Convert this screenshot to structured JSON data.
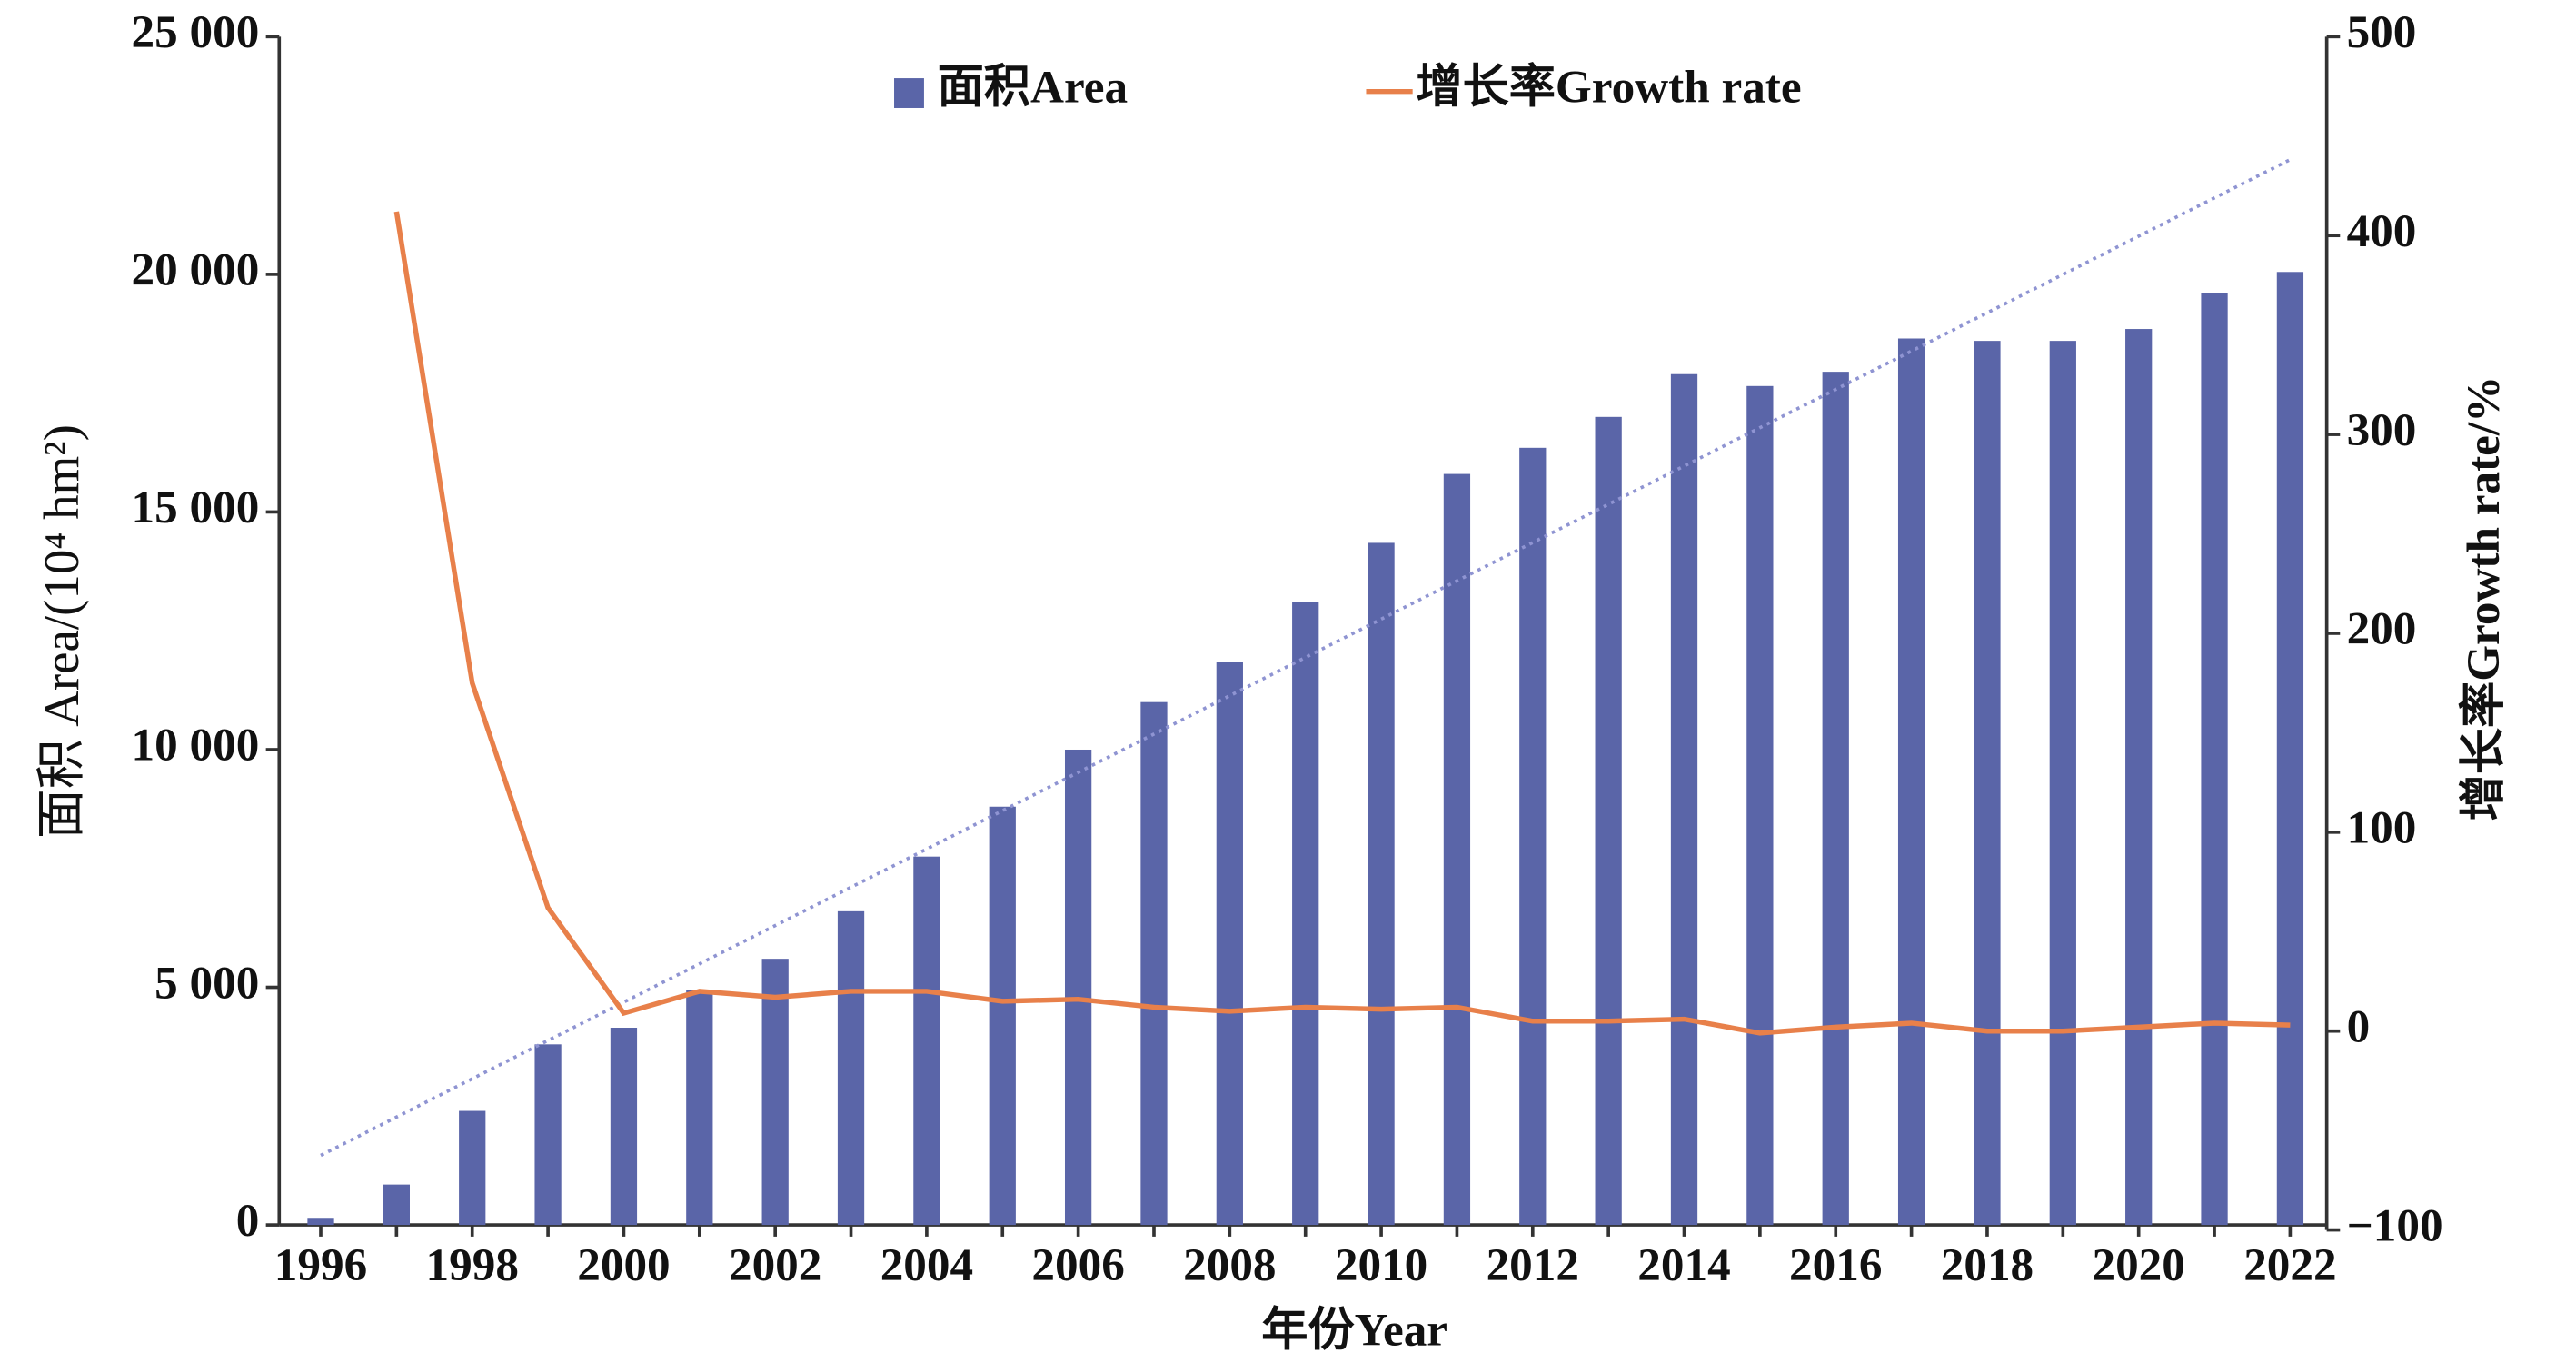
{
  "chart_data": {
    "type": "bar",
    "x_label": "年份Year",
    "y_label": "面积  Area/(10⁴ hm²)",
    "y2_label": "增长率Growth rate/%",
    "categories": [
      "1996",
      null,
      "1998",
      null,
      "2000",
      null,
      "2002",
      null,
      "2004",
      null,
      "2006",
      null,
      "2008",
      null,
      "2010",
      null,
      "2012",
      null,
      "2014",
      null,
      "2016",
      null,
      "2018",
      null,
      "2020",
      null,
      "2022"
    ],
    "series": [
      {
        "name": "面积Area",
        "type": "bar",
        "color": "#5a65a8",
        "trendline": true,
        "trendline_color": "#8f94d2",
        "values": [
          150,
          850,
          2400,
          3800,
          4150,
          4950,
          5600,
          6600,
          7750,
          8800,
          10000,
          11000,
          11850,
          13100,
          14350,
          15800,
          16350,
          17000,
          17900,
          17650,
          17950,
          18650,
          18600,
          18600,
          18850,
          19600,
          20050
        ]
      },
      {
        "name": "增长率Growth rate",
        "type": "line",
        "axis": "y2",
        "color": "#e8804a",
        "values": [
          null,
          412,
          175,
          62,
          9,
          20,
          17,
          20,
          20,
          15,
          16,
          12,
          10,
          12,
          11,
          12,
          5,
          5,
          6,
          -1,
          2,
          4,
          0,
          0,
          2,
          4,
          3
        ]
      }
    ],
    "ylim": [
      0,
      25000
    ],
    "yticks": [
      0,
      {
        "value": 5000,
        "label": "5 000"
      },
      {
        "value": 10000,
        "label": "10 000"
      },
      {
        "value": 15000,
        "label": "15 000"
      },
      {
        "value": 20000,
        "label": "20 000"
      },
      {
        "value": 25000,
        "label": "25 000"
      }
    ],
    "y2lim": [
      -100,
      500
    ],
    "y2ticks": [
      {
        "value": -100,
        "label": "−100"
      },
      0,
      100,
      200,
      300,
      400,
      500
    ],
    "legend": "top"
  }
}
